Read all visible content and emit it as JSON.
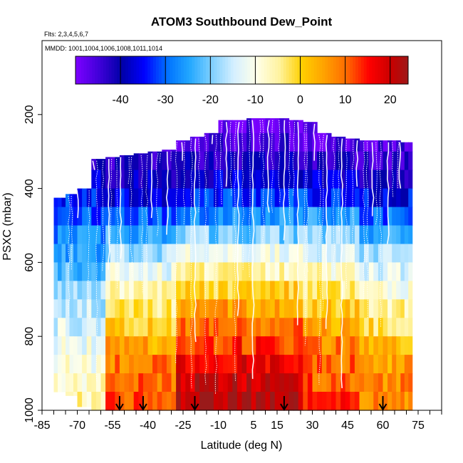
{
  "chart_data": {
    "type": "heatmap",
    "title": "ATOM3 Southbound Dew_Point",
    "subtitle_flights": "Flts: 2,3,4,5,6,7",
    "subtitle_dates": "MMDD: 1001,1004,1006,1008,1011,1014",
    "xlabel": "Latitude (deg N)",
    "ylabel": "PSXC (mbar)",
    "xlim": [
      -85,
      85
    ],
    "ylim": [
      1000,
      0
    ],
    "x_tick_labels": [
      "-85",
      "-70",
      "-55",
      "-40",
      "-25",
      "-10",
      "5",
      "15",
      "30",
      "45",
      "60",
      "75"
    ],
    "x_tick_values": [
      -85,
      -70,
      -55,
      -40,
      -25,
      -10,
      5,
      15,
      30,
      45,
      60,
      75
    ],
    "x_minor_step": 5,
    "y_ticks": [
      200,
      400,
      600,
      800,
      1000
    ],
    "colorbar": {
      "range": [
        -50,
        24
      ],
      "ticks": [
        -40,
        -30,
        -20,
        -10,
        0,
        10,
        20
      ],
      "colors": [
        "#7a00ff",
        "#3f00d8",
        "#0000a8",
        "#0000ff",
        "#0070ff",
        "#21a7ff",
        "#7fd0ff",
        "#d6f0ff",
        "#ffffe8",
        "#fff3a0",
        "#ffd000",
        "#ffa200",
        "#ff6a00",
        "#ff0000",
        "#c80000",
        "#9a1a1a"
      ],
      "stops": [
        -50,
        -45,
        -40,
        -35,
        -30,
        -25,
        -20,
        -15,
        -10,
        -5,
        0,
        5,
        10,
        15,
        20,
        24
      ]
    },
    "arrow_latitudes": [
      -52,
      -42,
      -20,
      18,
      60
    ],
    "lat_columns": [
      -77,
      -73,
      -67,
      -61,
      -55,
      -49,
      -43,
      -37,
      -31,
      -25,
      -19,
      -13,
      -7,
      -1,
      5,
      11,
      17,
      23,
      29,
      35,
      41,
      47,
      53,
      59,
      65,
      70
    ],
    "column_top_pressure": [
      425,
      415,
      400,
      320,
      315,
      310,
      305,
      300,
      295,
      270,
      260,
      250,
      215,
      215,
      210,
      210,
      210,
      215,
      220,
      250,
      260,
      265,
      270,
      270,
      270,
      275
    ],
    "column_bottom_pressure": [
      950,
      960,
      990,
      1000,
      1000,
      1000,
      1000,
      1000,
      1000,
      1000,
      1000,
      1000,
      1000,
      1000,
      1000,
      1000,
      1000,
      1000,
      1000,
      1000,
      1000,
      1000,
      1000,
      1000,
      1000,
      1000
    ],
    "pressure_levels": [
      200,
      250,
      300,
      350,
      400,
      450,
      500,
      550,
      600,
      650,
      700,
      750,
      800,
      850,
      900,
      950,
      1000
    ],
    "dewpoint_profile_by_region": {
      "southern_high_lat": [
        -48,
        -45,
        -42,
        -38,
        -34,
        -31,
        -28,
        -25,
        -22,
        -18,
        -16,
        -14,
        -12,
        -10,
        -8,
        -6
      ],
      "southern_mid_lat": [
        -48,
        -46,
        -43,
        -40,
        -36,
        -30,
        -24,
        -18,
        -12,
        -8,
        -4,
        0,
        4,
        8,
        10,
        12
      ],
      "tropics": [
        -47,
        -45,
        -42,
        -38,
        -33,
        -27,
        -20,
        -12,
        -6,
        0,
        5,
        9,
        13,
        17,
        20,
        22
      ],
      "northern_mid_lat": [
        -48,
        -46,
        -43,
        -39,
        -33,
        -26,
        -19,
        -13,
        -8,
        -4,
        0,
        4,
        8,
        10,
        11,
        12
      ],
      "northern_high_lat": [
        -48,
        -46,
        -44,
        -40,
        -36,
        -30,
        -24,
        -18,
        -14,
        -10,
        -6,
        -2,
        2,
        5,
        7,
        8
      ]
    }
  }
}
